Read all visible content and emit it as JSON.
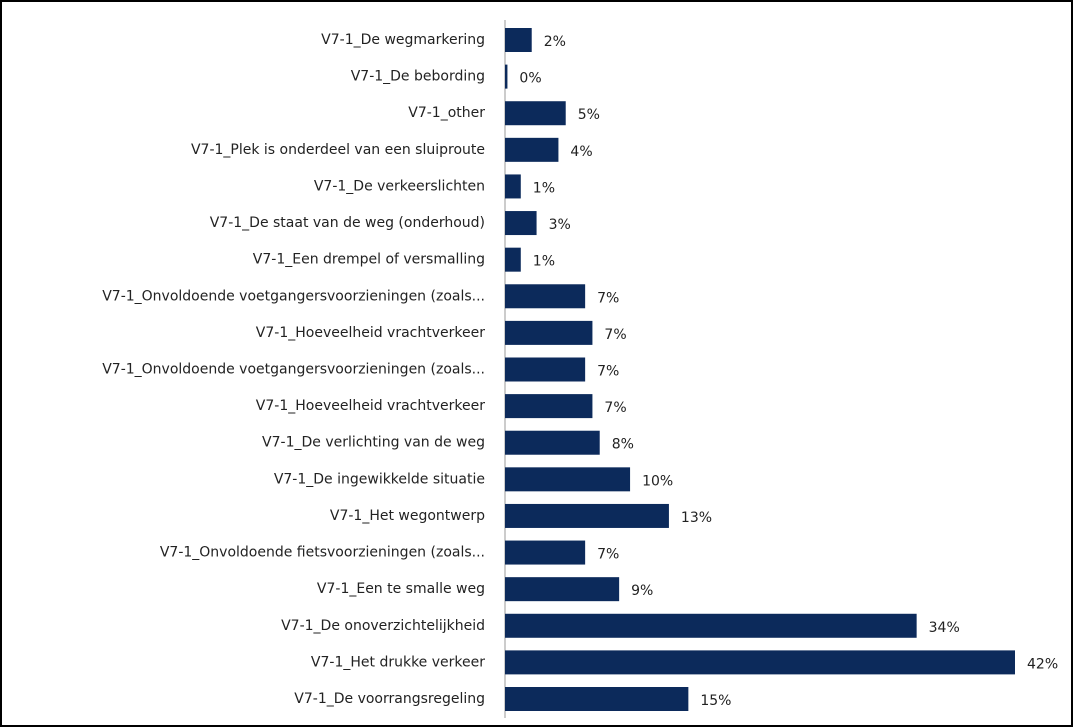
{
  "chart_data": {
    "type": "bar",
    "orientation": "horizontal",
    "color": "#0c2a5b",
    "categories": [
      "V7-1_De wegmarkering",
      "V7-1_De bebording",
      "V7-1_other",
      "V7-1_Plek is onderdeel van een sluiproute",
      "V7-1_De verkeerslichten",
      "V7-1_De staat van de weg (onderhoud)",
      "V7-1_Een drempel of versmalling",
      "V7-1_Onvoldoende voetgangersvoorzieningen (zoals...",
      "V7-1_Hoeveelheid vrachtverkeer",
      "V7-1_Onvoldoende voetgangersvoorzieningen (zoals...",
      "V7-1_Hoeveelheid vrachtverkeer",
      "V7-1_De verlichting van de weg",
      "V7-1_De ingewikkelde situatie",
      "V7-1_Het wegontwerp",
      "V7-1_Onvoldoende fietsvoorzieningen (zoals...",
      "V7-1_Een te smalle weg",
      "V7-1_De onoverzichtelijkheid",
      "V7-1_Het drukke verkeer",
      "V7-1_De voorrangsregeling"
    ],
    "values": [
      2.2,
      0.2,
      5.0,
      4.4,
      1.3,
      2.6,
      1.3,
      6.6,
      7.2,
      6.6,
      7.2,
      7.8,
      10.3,
      13.5,
      6.6,
      9.4,
      33.9,
      42,
      15.1
    ],
    "value_labels": [
      "2%",
      "0%",
      "5%",
      "4%",
      "1%",
      "3%",
      "1%",
      "7%",
      "7%",
      "7%",
      "7%",
      "8%",
      "10%",
      "13%",
      "7%",
      "9%",
      "34%",
      "42%",
      "15%"
    ]
  }
}
